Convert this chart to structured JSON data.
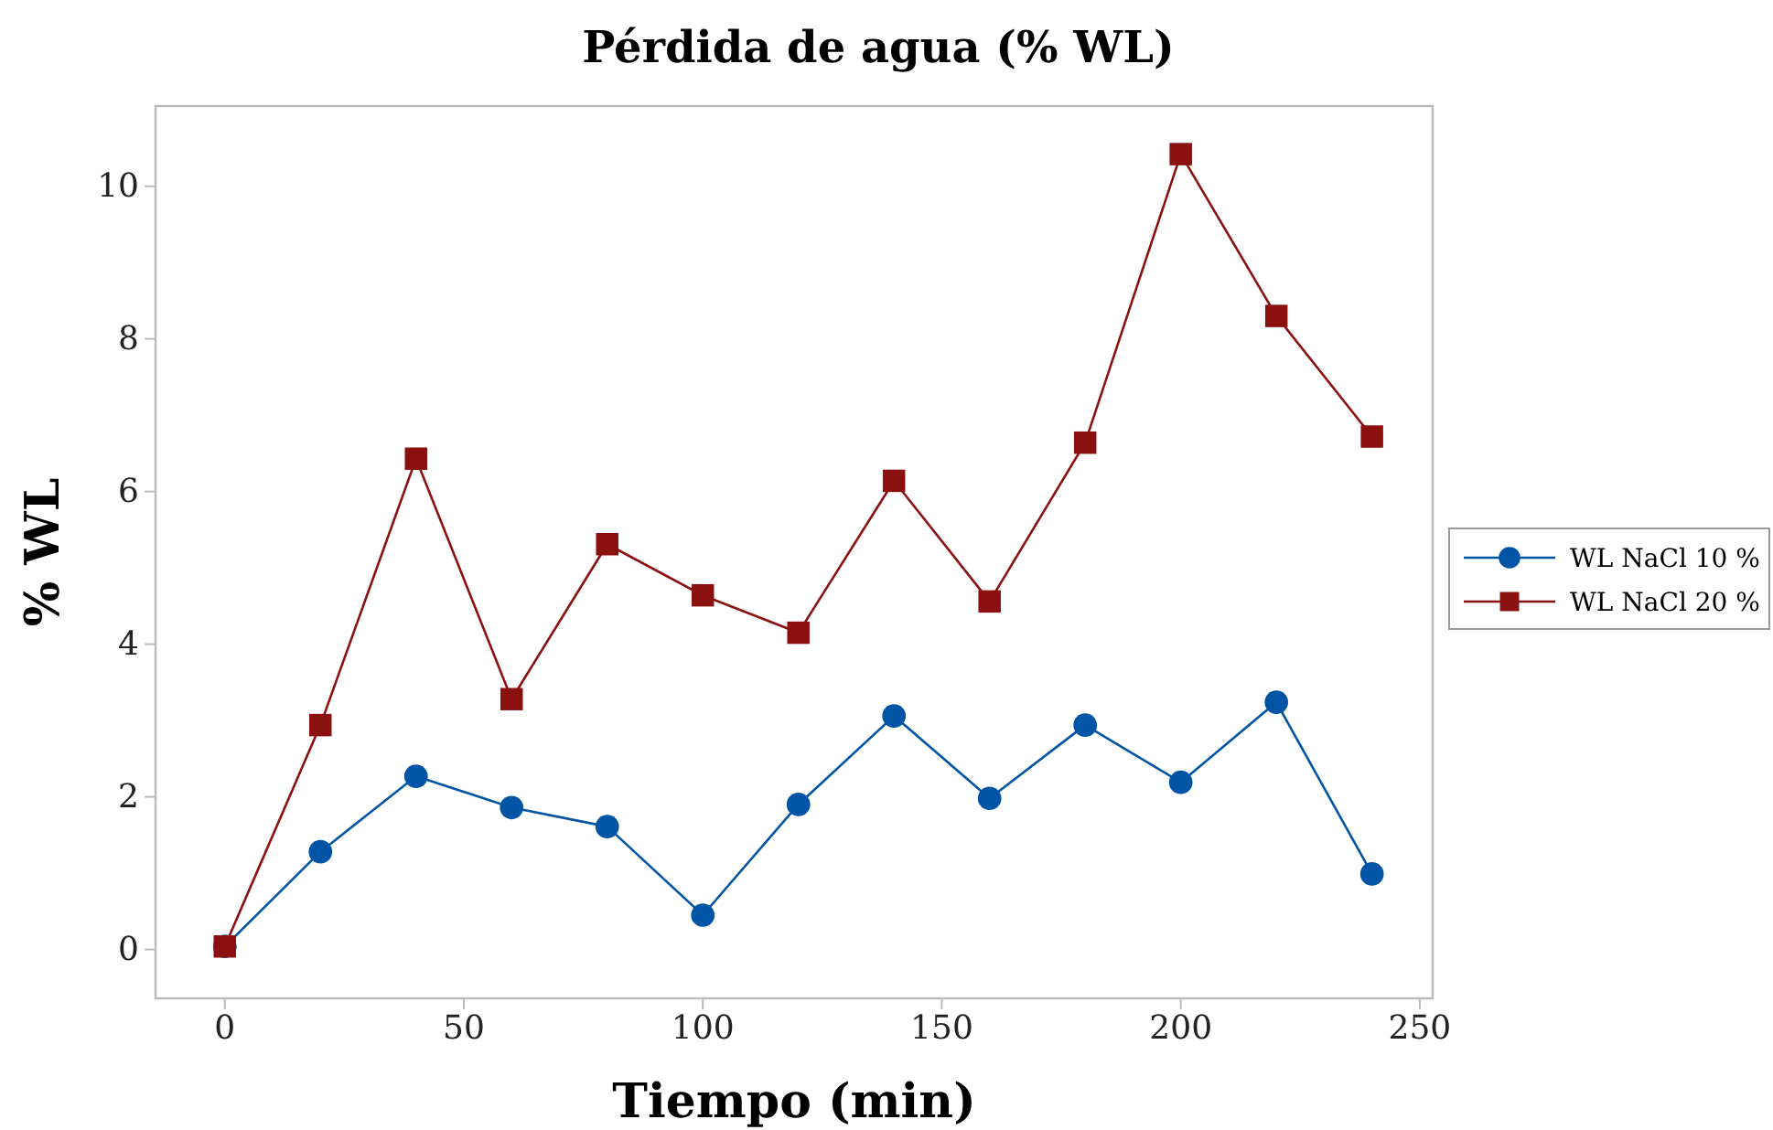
{
  "chart_data": {
    "type": "line",
    "title": "Pérdida de agua (% WL)",
    "xlabel": "Tiempo (min)",
    "ylabel": "% WL",
    "x": [
      0,
      20,
      40,
      60,
      80,
      100,
      120,
      140,
      160,
      180,
      200,
      220,
      240
    ],
    "series": [
      {
        "name": "WL NaCl 10 %",
        "color": "#0054a6",
        "marker": "circle",
        "values": [
          0.04,
          1.28,
          2.27,
          1.86,
          1.61,
          0.45,
          1.9,
          3.06,
          1.98,
          2.94,
          2.19,
          3.24,
          0.99
        ]
      },
      {
        "name": "WL NaCl 20 %",
        "color": "#8b1111",
        "marker": "square",
        "values": [
          0.04,
          2.94,
          6.43,
          3.28,
          5.31,
          4.64,
          4.15,
          6.14,
          4.56,
          6.64,
          10.42,
          8.3,
          6.72
        ]
      }
    ],
    "xlim": [
      -14.5,
      252.7
    ],
    "xticks": [
      0,
      50,
      100,
      150,
      200,
      250
    ],
    "ylim": [
      -0.64,
      11.05
    ],
    "yticks": [
      0,
      2,
      4,
      6,
      8,
      10
    ],
    "grid": false,
    "legend": "right",
    "line_style": "solid"
  }
}
